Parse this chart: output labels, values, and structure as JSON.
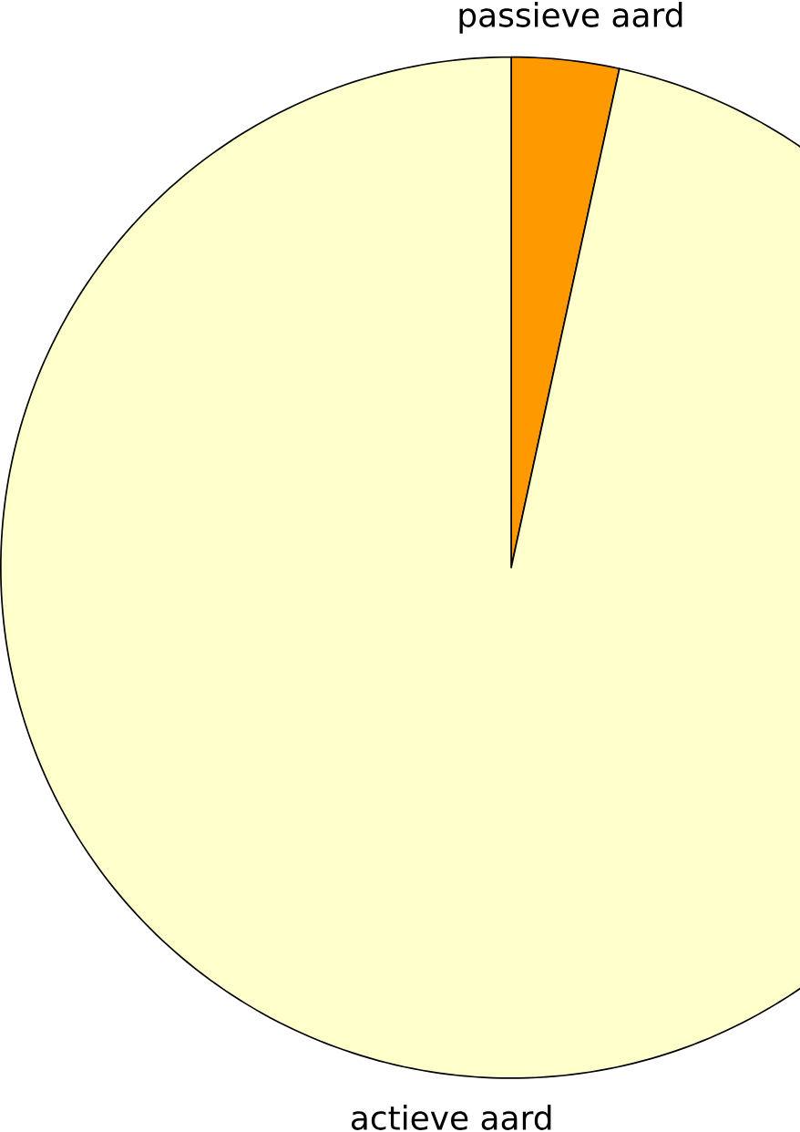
{
  "chart_data": {
    "type": "pie",
    "categories": [
      "passieve aard",
      "actieve aard"
    ],
    "values": [
      3.4,
      96.6
    ],
    "colors": [
      "#ff9900",
      "#ffffcc"
    ]
  }
}
